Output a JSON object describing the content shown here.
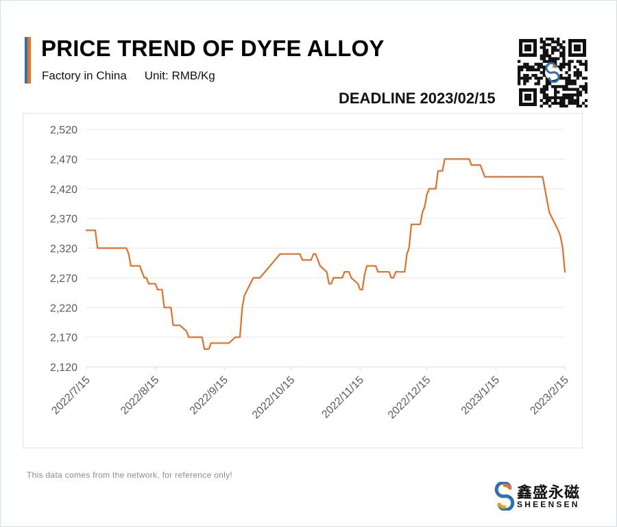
{
  "header": {
    "title": "PRICE TREND OF DYFE ALLOY",
    "subtitle_origin": "Factory in China",
    "subtitle_unit": "Unit: RMB/Kg",
    "deadline": "DEADLINE 2023/02/15",
    "accent_colors": [
      "#2f6fb3",
      "#e8742a"
    ]
  },
  "qr_code": {
    "icon": "qr-code-icon"
  },
  "footer": {
    "note": "This data comes from the network, for reference only!",
    "brand_cn": "鑫盛永磁",
    "brand_en": "SHEENSEN",
    "brand_logo_icon": "sheensen-logo-icon"
  },
  "chart_data": {
    "type": "line",
    "line_color": "#e0702a",
    "grid": true,
    "ylim": [
      2120,
      2520
    ],
    "yticks": [
      2120,
      2170,
      2220,
      2270,
      2320,
      2370,
      2420,
      2470,
      2520
    ],
    "ytick_labels": [
      "2,120",
      "2,170",
      "2,220",
      "2,270",
      "2,320",
      "2,370",
      "2,420",
      "2,470",
      "2,520"
    ],
    "xlim": [
      "2022-07-15",
      "2023-02-15"
    ],
    "xticks": [
      "2022-07-15",
      "2022-08-15",
      "2022-09-15",
      "2022-10-15",
      "2022-11-15",
      "2022-12-15",
      "2023-01-15",
      "2023-02-15"
    ],
    "xtick_labels": [
      "2022/7/15",
      "2022/8/15",
      "2022/9/15",
      "2022/10/15",
      "2022/11/15",
      "2022/12/15",
      "2023/1/15",
      "2023/2/15"
    ],
    "series": [
      {
        "points": [
          [
            "2022-07-15",
            2350
          ],
          [
            "2022-07-19",
            2350
          ],
          [
            "2022-07-20",
            2320
          ],
          [
            "2022-07-31",
            2320
          ],
          [
            "2022-08-02",
            2320
          ],
          [
            "2022-08-03",
            2310
          ],
          [
            "2022-08-04",
            2290
          ],
          [
            "2022-08-08",
            2290
          ],
          [
            "2022-08-10",
            2270
          ],
          [
            "2022-08-11",
            2270
          ],
          [
            "2022-08-12",
            2260
          ],
          [
            "2022-08-15",
            2260
          ],
          [
            "2022-08-16",
            2250
          ],
          [
            "2022-08-18",
            2250
          ],
          [
            "2022-08-19",
            2220
          ],
          [
            "2022-08-22",
            2220
          ],
          [
            "2022-08-23",
            2190
          ],
          [
            "2022-08-26",
            2190
          ],
          [
            "2022-08-29",
            2180
          ],
          [
            "2022-08-30",
            2170
          ],
          [
            "2022-09-05",
            2170
          ],
          [
            "2022-09-06",
            2150
          ],
          [
            "2022-09-08",
            2150
          ],
          [
            "2022-09-09",
            2160
          ],
          [
            "2022-09-17",
            2160
          ],
          [
            "2022-09-20",
            2170
          ],
          [
            "2022-09-22",
            2170
          ],
          [
            "2022-09-23",
            2220
          ],
          [
            "2022-09-24",
            2240
          ],
          [
            "2022-09-26",
            2255
          ],
          [
            "2022-09-28",
            2270
          ],
          [
            "2022-10-01",
            2270
          ],
          [
            "2022-10-10",
            2310
          ],
          [
            "2022-10-19",
            2310
          ],
          [
            "2022-10-20",
            2300
          ],
          [
            "2022-10-24",
            2300
          ],
          [
            "2022-10-25",
            2310
          ],
          [
            "2022-10-26",
            2310
          ],
          [
            "2022-10-27",
            2300
          ],
          [
            "2022-10-28",
            2290
          ],
          [
            "2022-10-31",
            2280
          ],
          [
            "2022-11-01",
            2260
          ],
          [
            "2022-11-02",
            2260
          ],
          [
            "2022-11-03",
            2270
          ],
          [
            "2022-11-07",
            2270
          ],
          [
            "2022-11-08",
            2280
          ],
          [
            "2022-11-10",
            2280
          ],
          [
            "2022-11-11",
            2270
          ],
          [
            "2022-11-14",
            2260
          ],
          [
            "2022-11-15",
            2250
          ],
          [
            "2022-11-16",
            2250
          ],
          [
            "2022-11-17",
            2275
          ],
          [
            "2022-11-18",
            2290
          ],
          [
            "2022-11-22",
            2290
          ],
          [
            "2022-11-23",
            2280
          ],
          [
            "2022-11-28",
            2280
          ],
          [
            "2022-11-29",
            2270
          ],
          [
            "2022-11-30",
            2270
          ],
          [
            "2022-12-01",
            2280
          ],
          [
            "2022-12-05",
            2280
          ],
          [
            "2022-12-06",
            2310
          ],
          [
            "2022-12-07",
            2320
          ],
          [
            "2022-12-08",
            2360
          ],
          [
            "2022-12-12",
            2360
          ],
          [
            "2022-12-13",
            2380
          ],
          [
            "2022-12-14",
            2390
          ],
          [
            "2022-12-15",
            2410
          ],
          [
            "2022-12-16",
            2420
          ],
          [
            "2022-12-19",
            2420
          ],
          [
            "2022-12-20",
            2450
          ],
          [
            "2022-12-22",
            2450
          ],
          [
            "2022-12-23",
            2470
          ],
          [
            "2023-01-03",
            2470
          ],
          [
            "2023-01-04",
            2460
          ],
          [
            "2023-01-08",
            2460
          ],
          [
            "2023-01-09",
            2450
          ],
          [
            "2023-01-10",
            2440
          ],
          [
            "2023-02-05",
            2440
          ],
          [
            "2023-02-06",
            2420
          ],
          [
            "2023-02-07",
            2400
          ],
          [
            "2023-02-08",
            2380
          ],
          [
            "2023-02-12",
            2350
          ],
          [
            "2023-02-13",
            2340
          ],
          [
            "2023-02-14",
            2320
          ],
          [
            "2023-02-15",
            2280
          ]
        ]
      }
    ]
  }
}
